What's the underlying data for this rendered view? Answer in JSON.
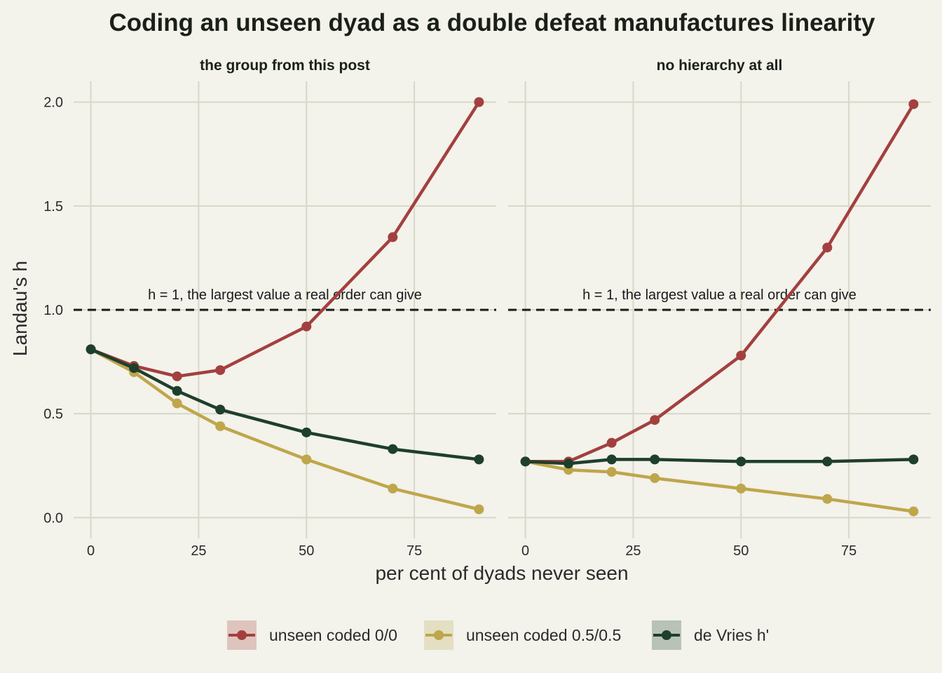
{
  "chart_data": {
    "type": "line",
    "title": "Coding an unseen dyad as a double defeat manufactures linearity",
    "xlabel": "per cent of dyads never seen",
    "ylabel": "Landau's h",
    "xlim": [
      -4,
      94
    ],
    "ylim": [
      -0.1,
      2.1
    ],
    "x_ticks": [
      0,
      25,
      50,
      75
    ],
    "x_tick_labels": [
      "0",
      "25",
      "50",
      "75"
    ],
    "y_ticks": [
      0,
      0.5,
      1,
      1.5,
      2
    ],
    "y_tick_labels": [
      "0.0",
      "0.5",
      "1.0",
      "1.5",
      "2.0"
    ],
    "grid": true,
    "legend_position": "bottom",
    "reference_line": {
      "y": 1.0,
      "label": "h = 1, the largest value a real order can give"
    },
    "legend": [
      {
        "label": "unseen coded 0/0",
        "color": "#a3403f",
        "fill": "#dfc4be"
      },
      {
        "label": "unseen coded 0.5/0.5",
        "color": "#bfa64b",
        "fill": "#e4dfc3"
      },
      {
        "label": "de Vries h'",
        "color": "#1e3f2b",
        "fill": "#b8c2b6"
      }
    ],
    "panels": [
      {
        "label": "the group from this post",
        "x": [
          0,
          10,
          20,
          30,
          50,
          70,
          90
        ],
        "series": [
          {
            "values": [
              0.81,
              0.73,
              0.68,
              0.71,
              0.92,
              1.35,
              2.0
            ],
            "color": "#a3403f"
          },
          {
            "values": [
              0.81,
              0.7,
              0.55,
              0.44,
              0.28,
              0.14,
              0.04
            ],
            "color": "#bfa64b"
          },
          {
            "values": [
              0.81,
              0.72,
              0.61,
              0.52,
              0.41,
              0.33,
              0.28
            ],
            "color": "#1e3f2b"
          }
        ]
      },
      {
        "label": "no hierarchy at all",
        "x": [
          0,
          10,
          20,
          30,
          50,
          70,
          90
        ],
        "series": [
          {
            "values": [
              0.27,
              0.27,
              0.36,
              0.47,
              0.78,
              1.3,
              1.99
            ],
            "color": "#a3403f"
          },
          {
            "values": [
              0.27,
              0.23,
              0.22,
              0.19,
              0.14,
              0.09,
              0.03
            ],
            "color": "#bfa64b"
          },
          {
            "values": [
              0.27,
              0.26,
              0.28,
              0.28,
              0.27,
              0.27,
              0.28
            ],
            "color": "#1e3f2b"
          }
        ]
      }
    ]
  }
}
